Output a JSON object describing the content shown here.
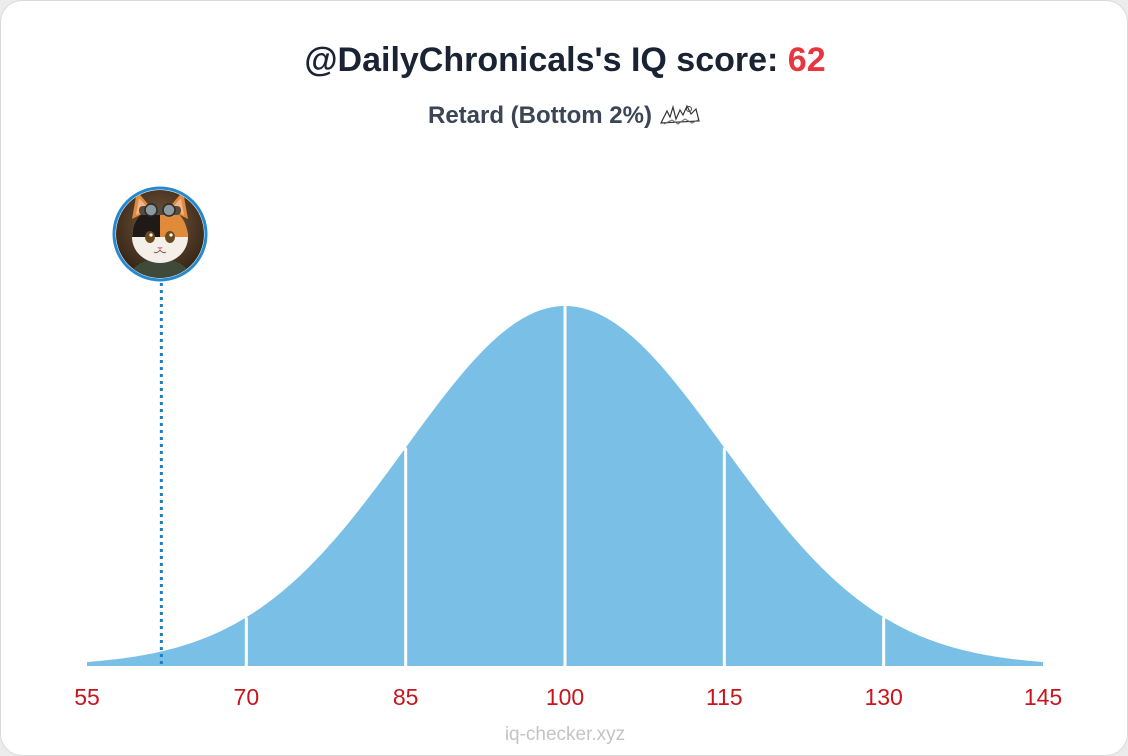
{
  "header": {
    "title_prefix": "@DailyChronicals's IQ score: ",
    "score": "62",
    "subtitle": "Retard (Bottom 2%)"
  },
  "footer": {
    "site": "iq-checker.xyz"
  },
  "colors": {
    "curve_fill": "#79bfe6",
    "section_line": "#ffffff",
    "marker": "#1e7fc7",
    "tick_label": "#c8141c",
    "score": "#e8363f"
  },
  "chart_data": {
    "type": "area",
    "distribution": "normal",
    "mean": 100,
    "sd": 15,
    "xlim": [
      55,
      145
    ],
    "ticks": [
      55,
      70,
      85,
      100,
      115,
      130,
      145
    ],
    "tick_labels": [
      "55",
      "70",
      "85",
      "100",
      "115",
      "130",
      "145"
    ],
    "section_lines": [
      70,
      85,
      100,
      115,
      130
    ],
    "user_score": 62,
    "grid": false,
    "legend": "none"
  }
}
